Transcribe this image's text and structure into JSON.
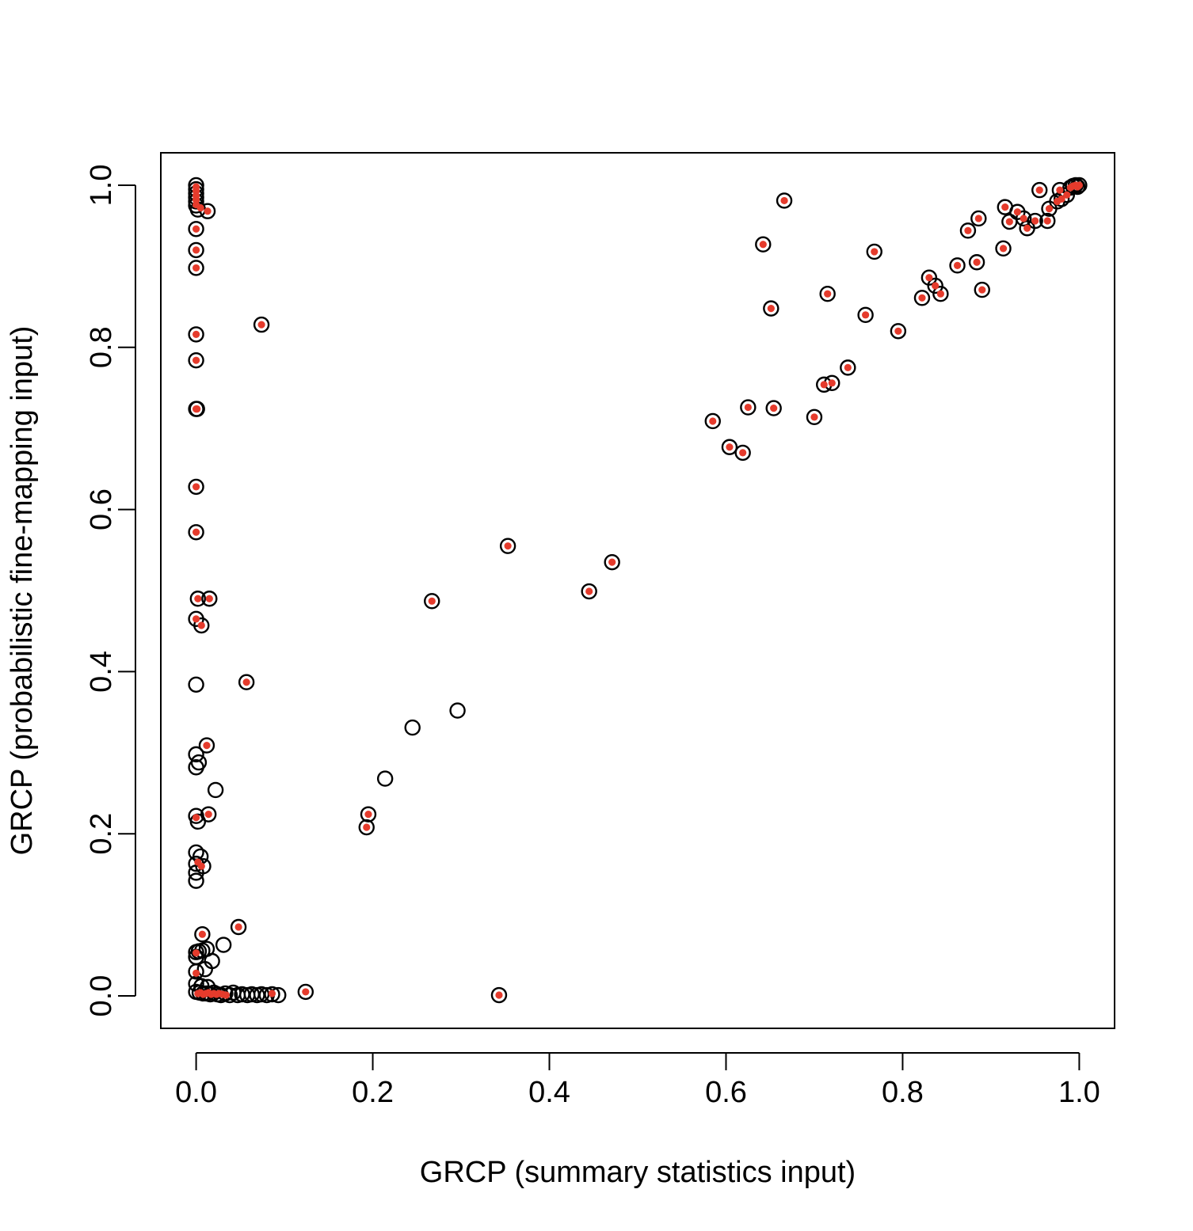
{
  "chart_data": {
    "type": "scatter",
    "title": "",
    "xlabel": "GRCP (summary statistics input)",
    "ylabel": "GRCP (probabilistic fine-mapping input)",
    "xlim": [
      -0.04,
      1.04
    ],
    "ylim": [
      -0.04,
      1.04
    ],
    "grid": false,
    "legend": "none",
    "x_ticks": [
      0.0,
      0.2,
      0.4,
      0.6,
      0.8,
      1.0
    ],
    "x_tick_labels": [
      "0.0",
      "0.2",
      "0.4",
      "0.6",
      "0.8",
      "1.0"
    ],
    "y_ticks": [
      0.0,
      0.2,
      0.4,
      0.6,
      0.8,
      1.0
    ],
    "y_tick_labels": [
      "0.0",
      "0.2",
      "0.4",
      "0.6",
      "0.8",
      "1.0"
    ],
    "colors": {
      "open_circle": "#000000",
      "filled_point": "#e53b2c"
    },
    "series": [
      {
        "marker": "open-circle",
        "color": "#000000",
        "points": [
          [
            0.0,
            1.0
          ],
          [
            0.0,
            0.995
          ],
          [
            0.0,
            0.99
          ],
          [
            0.0,
            0.985
          ],
          [
            0.0,
            0.98
          ],
          [
            0.0,
            0.975
          ],
          [
            0.002,
            0.97
          ],
          [
            0.013,
            0.968
          ],
          [
            0.0,
            0.946
          ],
          [
            0.0,
            0.92
          ],
          [
            0.0,
            0.898
          ],
          [
            0.074,
            0.828
          ],
          [
            0.0,
            0.816
          ],
          [
            0.0,
            0.784
          ],
          [
            0.0,
            0.724
          ],
          [
            0.001,
            0.724
          ],
          [
            0.0,
            0.628
          ],
          [
            0.0,
            0.572
          ],
          [
            0.002,
            0.49
          ],
          [
            0.015,
            0.49
          ],
          [
            0.0,
            0.465
          ],
          [
            0.006,
            0.457
          ],
          [
            0.0,
            0.384
          ],
          [
            0.057,
            0.387
          ],
          [
            0.0,
            0.298
          ],
          [
            0.012,
            0.309
          ],
          [
            0.003,
            0.288
          ],
          [
            0.0,
            0.282
          ],
          [
            0.022,
            0.254
          ],
          [
            0.0,
            0.222
          ],
          [
            0.002,
            0.215
          ],
          [
            0.014,
            0.224
          ],
          [
            0.0,
            0.177
          ],
          [
            0.005,
            0.172
          ],
          [
            0.0,
            0.163
          ],
          [
            0.008,
            0.16
          ],
          [
            0.0,
            0.152
          ],
          [
            0.0,
            0.142
          ],
          [
            0.007,
            0.076
          ],
          [
            0.048,
            0.085
          ],
          [
            0.0,
            0.054
          ],
          [
            0.003,
            0.055
          ],
          [
            0.007,
            0.056
          ],
          [
            0.012,
            0.058
          ],
          [
            0.0,
            0.048
          ],
          [
            0.031,
            0.063
          ],
          [
            0.018,
            0.043
          ],
          [
            0.0,
            0.03
          ],
          [
            0.01,
            0.033
          ],
          [
            0.0,
            0.015
          ],
          [
            0.006,
            0.012
          ],
          [
            0.013,
            0.011
          ],
          [
            0.0,
            0.005
          ],
          [
            0.004,
            0.004
          ],
          [
            0.008,
            0.003
          ],
          [
            0.012,
            0.003
          ],
          [
            0.016,
            0.002
          ],
          [
            0.02,
            0.004
          ],
          [
            0.024,
            0.002
          ],
          [
            0.028,
            0.001
          ],
          [
            0.033,
            0.003
          ],
          [
            0.038,
            0.001
          ],
          [
            0.042,
            0.004
          ],
          [
            0.047,
            0.001
          ],
          [
            0.052,
            0.002
          ],
          [
            0.058,
            0.001
          ],
          [
            0.063,
            0.002
          ],
          [
            0.069,
            0.001
          ],
          [
            0.074,
            0.002
          ],
          [
            0.08,
            0.001
          ],
          [
            0.086,
            0.002
          ],
          [
            0.093,
            0.001
          ],
          [
            0.124,
            0.005
          ],
          [
            0.343,
            0.001
          ],
          [
            0.193,
            0.208
          ],
          [
            0.195,
            0.224
          ],
          [
            0.214,
            0.268
          ],
          [
            0.245,
            0.331
          ],
          [
            0.267,
            0.487
          ],
          [
            0.296,
            0.352
          ],
          [
            0.353,
            0.555
          ],
          [
            0.445,
            0.499
          ],
          [
            0.471,
            0.535
          ],
          [
            0.585,
            0.709
          ],
          [
            0.604,
            0.677
          ],
          [
            0.619,
            0.67
          ],
          [
            0.625,
            0.726
          ],
          [
            0.642,
            0.927
          ],
          [
            0.651,
            0.848
          ],
          [
            0.654,
            0.725
          ],
          [
            0.666,
            0.981
          ],
          [
            0.7,
            0.714
          ],
          [
            0.711,
            0.754
          ],
          [
            0.715,
            0.866
          ],
          [
            0.72,
            0.756
          ],
          [
            0.738,
            0.775
          ],
          [
            0.758,
            0.84
          ],
          [
            0.768,
            0.918
          ],
          [
            0.795,
            0.82
          ],
          [
            0.822,
            0.861
          ],
          [
            0.83,
            0.886
          ],
          [
            0.837,
            0.876
          ],
          [
            0.843,
            0.866
          ],
          [
            0.862,
            0.901
          ],
          [
            0.874,
            0.944
          ],
          [
            0.884,
            0.905
          ],
          [
            0.886,
            0.959
          ],
          [
            0.89,
            0.871
          ],
          [
            0.914,
            0.922
          ],
          [
            0.916,
            0.973
          ],
          [
            0.921,
            0.955
          ],
          [
            0.93,
            0.967
          ],
          [
            0.937,
            0.959
          ],
          [
            0.941,
            0.947
          ],
          [
            0.95,
            0.956
          ],
          [
            0.955,
            0.994
          ],
          [
            0.964,
            0.956
          ],
          [
            0.966,
            0.971
          ],
          [
            0.975,
            0.98
          ],
          [
            0.978,
            0.994
          ],
          [
            0.98,
            0.983
          ],
          [
            0.986,
            0.988
          ],
          [
            0.99,
            0.997
          ],
          [
            0.993,
            0.999
          ],
          [
            0.996,
            1.0
          ],
          [
            0.998,
            0.998
          ],
          [
            1.0,
            1.0
          ]
        ]
      },
      {
        "marker": "filled-dot",
        "color": "#e53b2c",
        "points": [
          [
            0.0,
            0.998
          ],
          [
            0.0,
            0.993
          ],
          [
            0.0,
            0.987
          ],
          [
            0.0,
            0.982
          ],
          [
            0.0,
            0.976
          ],
          [
            0.005,
            0.972
          ],
          [
            0.013,
            0.968
          ],
          [
            0.0,
            0.946
          ],
          [
            0.0,
            0.92
          ],
          [
            0.0,
            0.898
          ],
          [
            0.074,
            0.828
          ],
          [
            0.0,
            0.816
          ],
          [
            0.0,
            0.784
          ],
          [
            0.0,
            0.724
          ],
          [
            0.001,
            0.724
          ],
          [
            0.0,
            0.628
          ],
          [
            0.0,
            0.572
          ],
          [
            0.002,
            0.49
          ],
          [
            0.015,
            0.49
          ],
          [
            0.0,
            0.465
          ],
          [
            0.006,
            0.457
          ],
          [
            0.057,
            0.387
          ],
          [
            0.012,
            0.309
          ],
          [
            0.0,
            0.22
          ],
          [
            0.014,
            0.224
          ],
          [
            0.002,
            0.165
          ],
          [
            0.006,
            0.16
          ],
          [
            0.007,
            0.076
          ],
          [
            0.048,
            0.085
          ],
          [
            0.0,
            0.053
          ],
          [
            0.0,
            0.028
          ],
          [
            0.002,
            0.003
          ],
          [
            0.005,
            0.004
          ],
          [
            0.008,
            0.002
          ],
          [
            0.011,
            0.003
          ],
          [
            0.014,
            0.004
          ],
          [
            0.017,
            0.002
          ],
          [
            0.02,
            0.003
          ],
          [
            0.023,
            0.002
          ],
          [
            0.026,
            0.003
          ],
          [
            0.03,
            0.002
          ],
          [
            0.034,
            0.001
          ],
          [
            0.086,
            0.003
          ],
          [
            0.124,
            0.005
          ],
          [
            0.343,
            0.001
          ],
          [
            0.193,
            0.208
          ],
          [
            0.195,
            0.224
          ],
          [
            0.267,
            0.487
          ],
          [
            0.353,
            0.555
          ],
          [
            0.445,
            0.499
          ],
          [
            0.471,
            0.535
          ],
          [
            0.585,
            0.709
          ],
          [
            0.604,
            0.677
          ],
          [
            0.619,
            0.67
          ],
          [
            0.625,
            0.726
          ],
          [
            0.642,
            0.927
          ],
          [
            0.651,
            0.848
          ],
          [
            0.654,
            0.725
          ],
          [
            0.666,
            0.981
          ],
          [
            0.7,
            0.714
          ],
          [
            0.711,
            0.754
          ],
          [
            0.715,
            0.866
          ],
          [
            0.72,
            0.756
          ],
          [
            0.738,
            0.775
          ],
          [
            0.758,
            0.84
          ],
          [
            0.768,
            0.918
          ],
          [
            0.795,
            0.82
          ],
          [
            0.822,
            0.861
          ],
          [
            0.83,
            0.886
          ],
          [
            0.837,
            0.876
          ],
          [
            0.843,
            0.866
          ],
          [
            0.862,
            0.901
          ],
          [
            0.874,
            0.944
          ],
          [
            0.884,
            0.905
          ],
          [
            0.886,
            0.959
          ],
          [
            0.89,
            0.871
          ],
          [
            0.914,
            0.922
          ],
          [
            0.916,
            0.973
          ],
          [
            0.921,
            0.955
          ],
          [
            0.93,
            0.967
          ],
          [
            0.937,
            0.959
          ],
          [
            0.941,
            0.947
          ],
          [
            0.95,
            0.956
          ],
          [
            0.955,
            0.994
          ],
          [
            0.964,
            0.956
          ],
          [
            0.966,
            0.971
          ],
          [
            0.975,
            0.98
          ],
          [
            0.978,
            0.994
          ],
          [
            0.98,
            0.983
          ],
          [
            0.986,
            0.988
          ],
          [
            0.99,
            0.997
          ],
          [
            0.993,
            0.999
          ],
          [
            0.996,
            1.0
          ],
          [
            0.998,
            0.998
          ],
          [
            1.0,
            1.0
          ]
        ]
      }
    ]
  }
}
